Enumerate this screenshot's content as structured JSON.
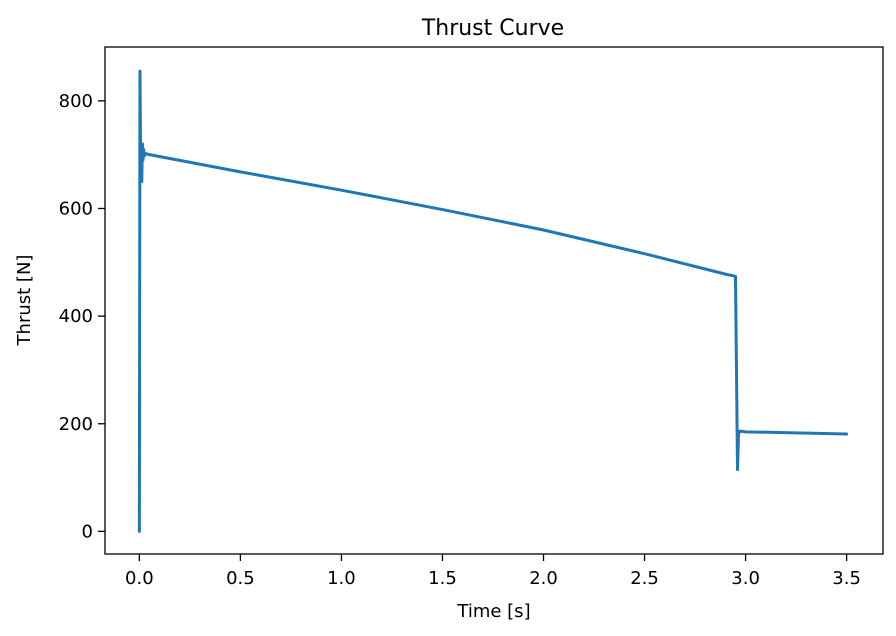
{
  "chart_data": {
    "type": "line",
    "title": "Thrust Curve",
    "xlabel": "Time [s]",
    "ylabel": "Thrust [N]",
    "xlim": [
      -0.17,
      3.68
    ],
    "ylim": [
      -42,
      900
    ],
    "xticks": [
      0.0,
      0.5,
      1.0,
      1.5,
      2.0,
      2.5,
      3.0,
      3.5
    ],
    "xtick_labels": [
      "0.0",
      "0.5",
      "1.0",
      "1.5",
      "2.0",
      "2.5",
      "3.0",
      "3.5"
    ],
    "yticks": [
      0,
      200,
      400,
      600,
      800
    ],
    "ytick_labels": [
      "0",
      "200",
      "400",
      "600",
      "800"
    ],
    "grid": false,
    "series": [
      {
        "color": "#1f77b4",
        "x": [
          0.0,
          0.003,
          0.006,
          0.009,
          0.012,
          0.015,
          0.018,
          0.021,
          0.025,
          0.03,
          0.05,
          0.5,
          1.0,
          1.5,
          2.0,
          2.5,
          2.9,
          2.95,
          2.955,
          2.96,
          2.965,
          2.97,
          2.98,
          3.0,
          3.5
        ],
        "y": [
          0,
          855,
          700,
          715,
          650,
          720,
          690,
          710,
          698,
          702,
          700,
          668,
          634,
          598,
          560,
          516,
          478,
          474,
          300,
          115,
          180,
          186,
          186,
          185,
          181
        ]
      }
    ]
  }
}
